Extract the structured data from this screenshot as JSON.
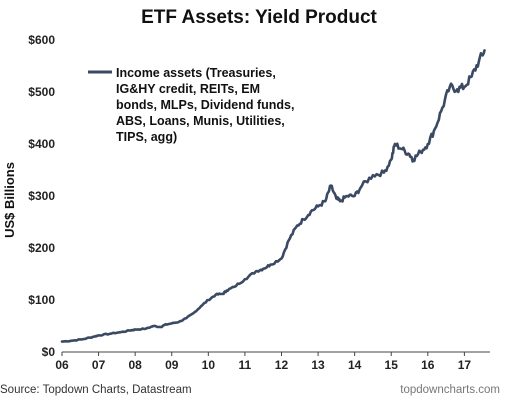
{
  "chart_data": {
    "type": "line",
    "title": "ETF Assets: Yield Product",
    "xlabel": "",
    "ylabel": "US$ Billions",
    "ylim": [
      0,
      600
    ],
    "xlim": [
      2006.0,
      2017.7
    ],
    "x_ticks": [
      "06",
      "07",
      "08",
      "09",
      "10",
      "11",
      "12",
      "13",
      "14",
      "15",
      "16",
      "17"
    ],
    "y_ticks": [
      "$0",
      "$100",
      "$200",
      "$300",
      "$400",
      "$500",
      "$600"
    ],
    "grid": false,
    "legend_position": "top-left",
    "series": [
      {
        "name": "Income assets (Treasuries, IG&HY credit, REITs, EM bonds, MLPs, Dividend funds, ABS, Loans, Munis, Utilities, TIPS, agg)",
        "color": "#3b4a63",
        "x": [
          2006.0,
          2006.3,
          2006.6,
          2006.9,
          2007.0,
          2007.3,
          2007.6,
          2007.9,
          2008.0,
          2008.3,
          2008.5,
          2008.7,
          2008.8,
          2009.0,
          2009.2,
          2009.4,
          2009.6,
          2009.8,
          2010.0,
          2010.2,
          2010.4,
          2010.5,
          2010.7,
          2011.0,
          2011.3,
          2011.5,
          2011.7,
          2012.0,
          2012.2,
          2012.4,
          2012.6,
          2012.8,
          2013.0,
          2013.2,
          2013.35,
          2013.5,
          2013.6,
          2013.8,
          2014.0,
          2014.2,
          2014.5,
          2014.8,
          2015.0,
          2015.1,
          2015.3,
          2015.5,
          2015.6,
          2015.8,
          2016.0,
          2016.2,
          2016.4,
          2016.6,
          2016.8,
          2017.0,
          2017.2,
          2017.4,
          2017.55
        ],
        "values": [
          20,
          22,
          25,
          30,
          32,
          35,
          38,
          42,
          43,
          45,
          50,
          48,
          52,
          55,
          58,
          65,
          75,
          88,
          100,
          110,
          112,
          118,
          125,
          140,
          155,
          160,
          168,
          180,
          215,
          240,
          255,
          270,
          280,
          290,
          320,
          295,
          290,
          300,
          300,
          320,
          340,
          345,
          370,
          400,
          390,
          380,
          370,
          385,
          400,
          430,
          470,
          510,
          505,
          510,
          530,
          560,
          580
        ]
      }
    ]
  },
  "footer": {
    "source": "Source: Topdown Charts, Datastream",
    "website": "topdowncharts.com"
  }
}
